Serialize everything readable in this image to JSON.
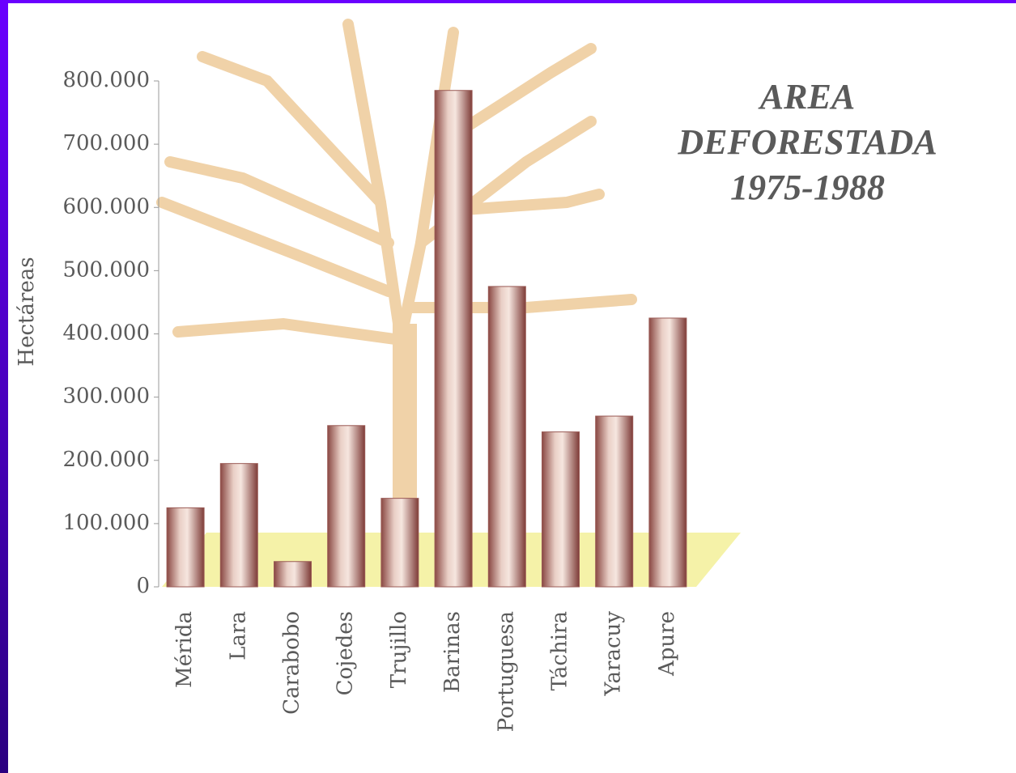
{
  "chart_data": {
    "type": "bar",
    "title": "AREA DEFORESTADA 1975-1988",
    "y_label": "Hectáreas",
    "categories": [
      "Mérida",
      "Lara",
      "Carabobo",
      "Cojedes",
      "Trujillo",
      "Barinas",
      "Portuguesa",
      "Táchira",
      "Yaracuy",
      "Apure"
    ],
    "values": [
      125000,
      195000,
      40000,
      255000,
      140000,
      785000,
      475000,
      245000,
      270000,
      425000
    ],
    "color": "#9a5a55",
    "ylim": [
      0,
      800000
    ],
    "yticks": [
      0,
      {
        "value": 100000,
        "label": "100.000"
      },
      {
        "value": 200000,
        "label": "200.000"
      },
      {
        "value": 300000,
        "label": "300.000"
      },
      {
        "value": 400000,
        "label": "400.000"
      },
      {
        "value": 500000,
        "label": "500.000"
      },
      {
        "value": 600000,
        "label": "600.000"
      },
      {
        "value": 700000,
        "label": "700.000"
      },
      {
        "value": 800000,
        "label": "800.000"
      }
    ]
  }
}
